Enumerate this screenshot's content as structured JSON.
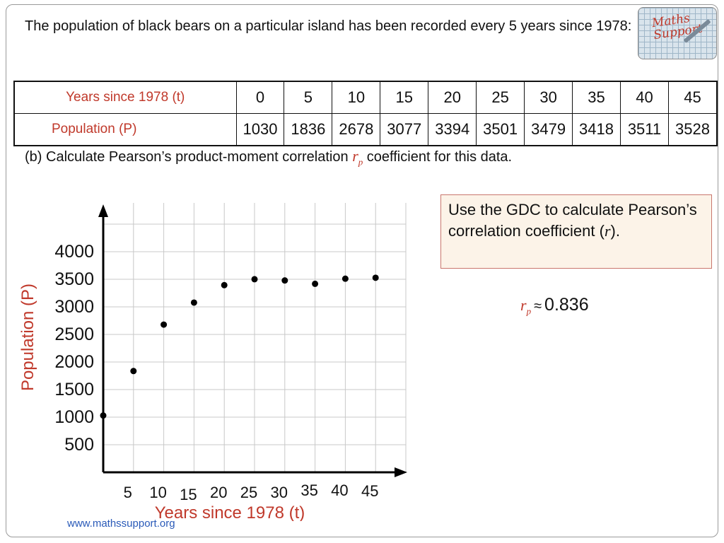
{
  "intro_text": "The population of black bears on a particular island has been recorded every 5 years since 1978:",
  "logo": {
    "text": "Maths Support"
  },
  "table": {
    "row1_label": "Years since 1978 (t)",
    "row2_label": "Population (P)",
    "years": [
      "0",
      "5",
      "10",
      "15",
      "20",
      "25",
      "30",
      "35",
      "40",
      "45"
    ],
    "population": [
      "1030",
      "1836",
      "2678",
      "3077",
      "3394",
      "3501",
      "3479",
      "3418",
      "3511",
      "3528"
    ]
  },
  "part_b": {
    "before": "(b) Calculate Pearson’s product-moment correlation ",
    "symbol": "r",
    "subscript": "p",
    "after": " coefficient for this data."
  },
  "note": {
    "before": "Use the GDC to calculate Pearson’s correlation coefficient (",
    "symbol": "r",
    "after": ")."
  },
  "answer": {
    "symbol": "r",
    "subscript": "p",
    "approx": "≈",
    "value": "0.836"
  },
  "chart_data": {
    "type": "scatter",
    "xlabel": "Years since 1978 (t)",
    "ylabel": "Population (P)",
    "x_ticks": [
      "5",
      "10",
      "15",
      "20",
      "25",
      "30",
      "35",
      "40",
      "45"
    ],
    "y_ticks": [
      "500",
      "1000",
      "1500",
      "2000",
      "2500",
      "3000",
      "3500",
      "4000"
    ],
    "xlim": [
      0,
      50
    ],
    "ylim": [
      0,
      4500
    ],
    "grid": true,
    "points": [
      {
        "x": 0,
        "y": 1030
      },
      {
        "x": 5,
        "y": 1836
      },
      {
        "x": 10,
        "y": 2678
      },
      {
        "x": 15,
        "y": 3077
      },
      {
        "x": 20,
        "y": 3394
      },
      {
        "x": 25,
        "y": 3501
      },
      {
        "x": 30,
        "y": 3479
      },
      {
        "x": 35,
        "y": 3418
      },
      {
        "x": 40,
        "y": 3511
      },
      {
        "x": 45,
        "y": 3528
      }
    ],
    "colors": {
      "label": "#c0392b",
      "point": "#000000",
      "grid": "#c8c8c8"
    }
  },
  "footer": "www.mathssupport.org"
}
